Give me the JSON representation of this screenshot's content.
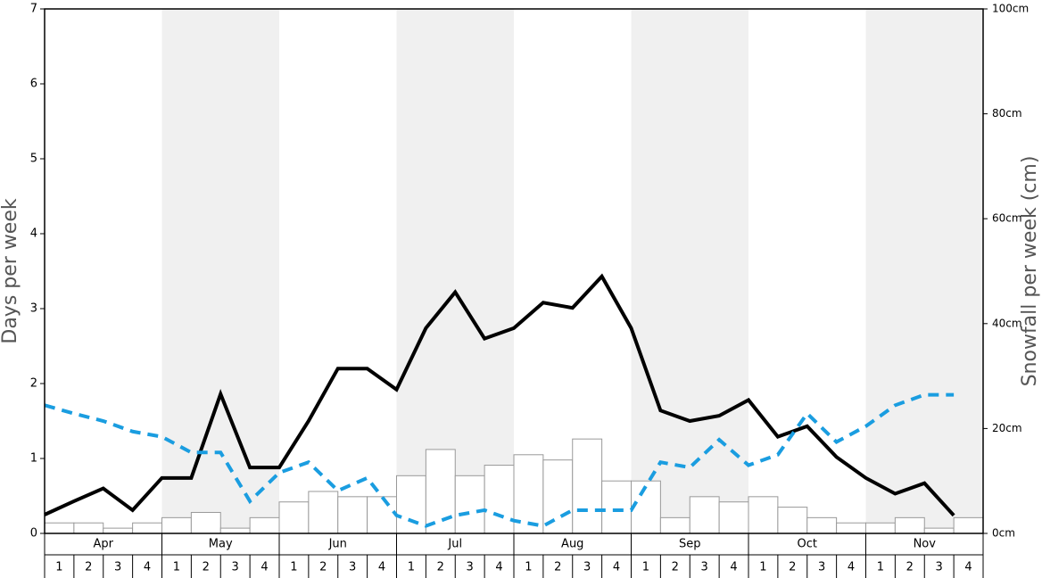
{
  "chart_data": {
    "type": "bar-line",
    "y_label": "Days per week",
    "y2_label": "Snowfall per week (cm)",
    "months": [
      "Apr",
      "May",
      "Jun",
      "Jul",
      "Aug",
      "Sep",
      "Oct",
      "Nov"
    ],
    "categories": [
      "1",
      "2",
      "3",
      "4",
      "1",
      "2",
      "3",
      "4",
      "1",
      "2",
      "3",
      "4",
      "1",
      "2",
      "3",
      "4",
      "1",
      "2",
      "3",
      "4",
      "1",
      "2",
      "3",
      "4",
      "1",
      "2",
      "3",
      "4",
      "1",
      "2",
      "3",
      "4"
    ],
    "ylim": [
      0,
      7
    ],
    "yticks": [
      0,
      1,
      2,
      3,
      4,
      5,
      6,
      7
    ],
    "y2lim": [
      0,
      100
    ],
    "y2ticks": [
      {
        "value": 0,
        "label": "0cm"
      },
      {
        "value": 20,
        "label": "20cm"
      },
      {
        "value": 40,
        "label": "40cm"
      },
      {
        "value": 60,
        "label": "60cm"
      },
      {
        "value": 80,
        "label": "80cm"
      },
      {
        "value": 100,
        "label": "100cm"
      }
    ],
    "series": [
      {
        "type": "bar",
        "axis": "y2",
        "color": "#ffffff",
        "values": [
          2,
          2,
          1,
          2,
          3,
          4,
          1,
          3,
          6,
          8,
          7,
          7,
          11,
          16,
          11,
          13,
          15,
          14,
          18,
          10,
          10,
          3,
          7,
          6,
          7,
          5,
          3,
          2,
          2,
          3,
          1,
          3
        ]
      },
      {
        "type": "line",
        "color": "#000000",
        "dashed": false,
        "values": [
          0.25,
          0.43,
          0.6,
          0.31,
          0.74,
          0.74,
          1.86,
          0.88,
          0.88,
          1.5,
          2.2,
          2.2,
          1.92,
          2.74,
          3.22,
          2.6,
          2.74,
          3.08,
          3.01,
          3.43,
          2.74,
          1.64,
          1.5,
          1.57,
          1.78,
          1.29,
          1.43,
          1.02,
          0.74,
          0.53,
          0.67,
          0.24
        ]
      },
      {
        "type": "line",
        "color": "#1a9de0",
        "dashed": true,
        "values": [
          1.71,
          1.6,
          1.5,
          1.36,
          1.29,
          1.08,
          1.08,
          0.43,
          0.81,
          0.95,
          0.57,
          0.74,
          0.24,
          0.1,
          0.24,
          0.31,
          0.17,
          0.1,
          0.31,
          0.31,
          0.31,
          0.95,
          0.88,
          1.25,
          0.91,
          1.05,
          1.6,
          1.22,
          1.43,
          1.71,
          1.85,
          1.85
        ]
      }
    ]
  }
}
